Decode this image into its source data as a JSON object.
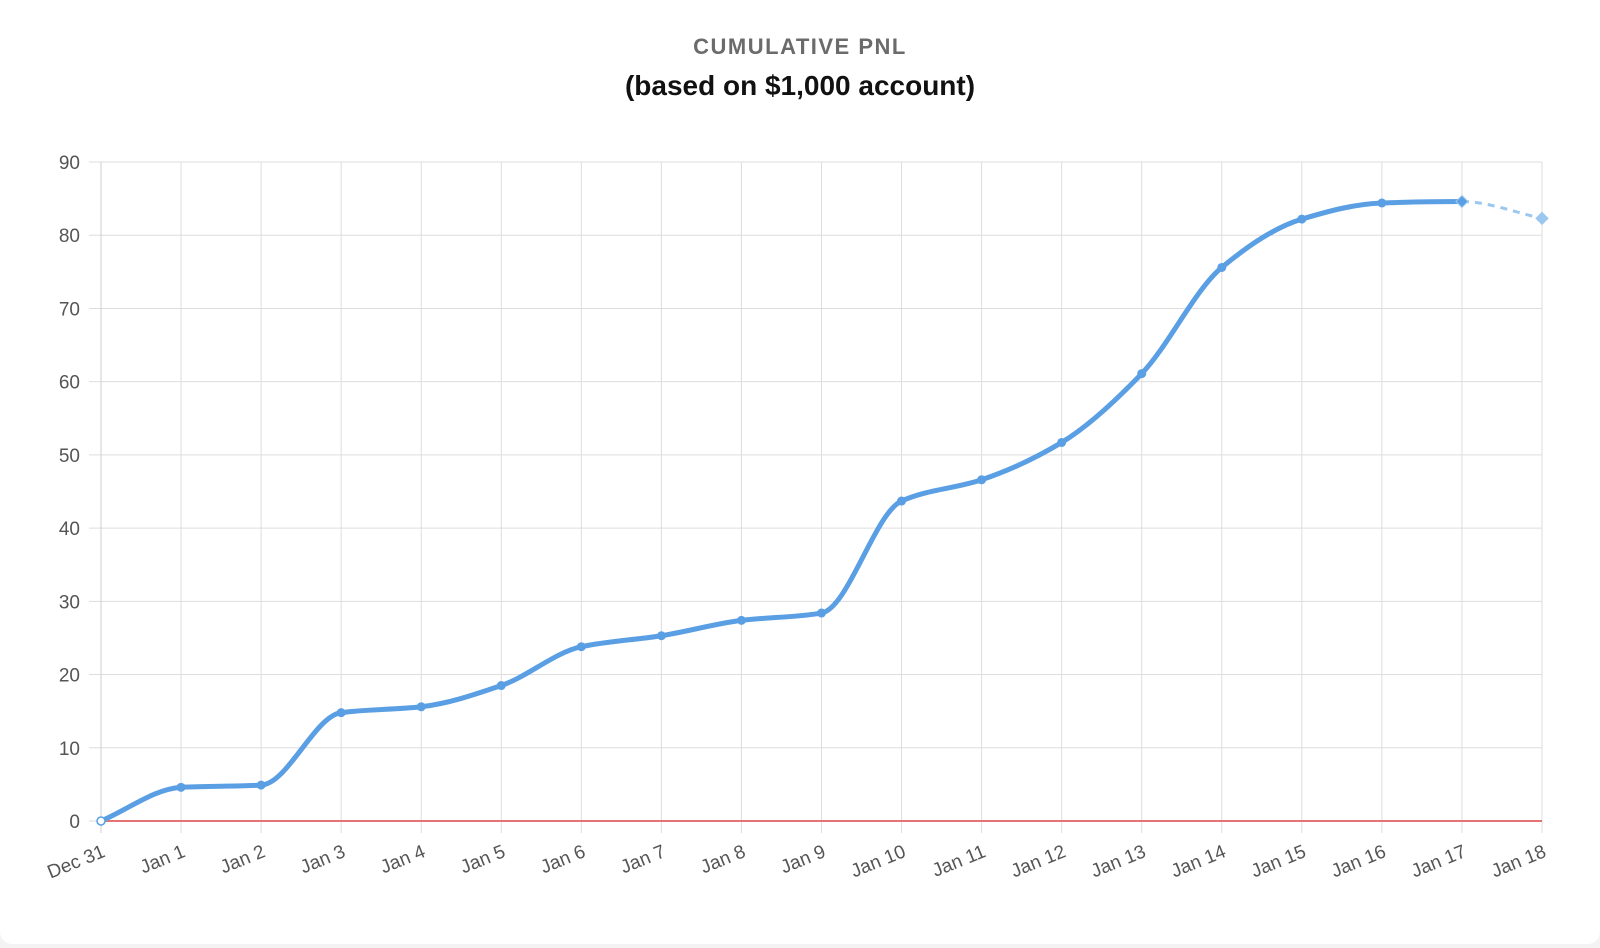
{
  "chart_data": {
    "type": "line",
    "title": "CUMULATIVE PNL",
    "subtitle": "(based on $1,000 account)",
    "xlabel": "",
    "ylabel": "",
    "ylim": [
      0,
      90
    ],
    "y_ticks": [
      "0",
      "10",
      "20",
      "30",
      "40",
      "50",
      "60",
      "70",
      "80",
      "90"
    ],
    "grid": true,
    "legend": "none",
    "categories": [
      "Dec 31",
      "Jan 1",
      "Jan 2",
      "Jan 3",
      "Jan 4",
      "Jan 5",
      "Jan 6",
      "Jan 7",
      "Jan 8",
      "Jan 9",
      "Jan 10",
      "Jan 11",
      "Jan 12",
      "Jan 13",
      "Jan 14",
      "Jan 15",
      "Jan 16",
      "Jan 17",
      "Jan 18"
    ],
    "values": [
      0,
      4.6,
      4.9,
      14.8,
      15.6,
      18.5,
      23.8,
      25.3,
      27.4,
      28.4,
      43.7,
      46.6,
      51.7,
      61.1,
      75.6,
      82.2,
      84.4,
      84.6,
      82.3
    ],
    "projected_from_index": 17,
    "baseline_value": 0,
    "colors": {
      "line": "#5a9fe3",
      "projection": "#9cc8f0",
      "baseline": "#e57373",
      "grid": "#dddddd",
      "axis": "#cfcfcf"
    }
  }
}
